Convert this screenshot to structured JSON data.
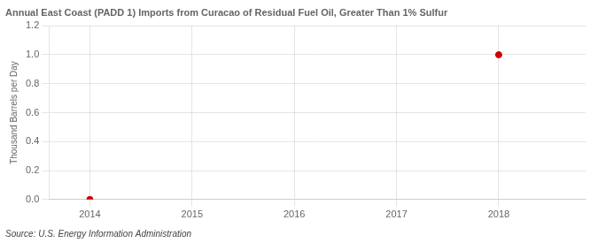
{
  "chart_data": {
    "type": "scatter",
    "title": "Annual East Coast (PADD 1) Imports from Curacao of Residual Fuel Oil, Greater Than 1% Sulfur",
    "ylabel": "Thousand Barrels per Day",
    "annotation": "Source: U.S. Energy Information Administration",
    "x": [
      2014,
      2018
    ],
    "values": [
      0.0,
      1.0
    ],
    "color": "#cc0000",
    "xlim": [
      2013.6,
      2018.85
    ],
    "xticks": [
      2014,
      2015,
      2016,
      2017,
      2018
    ],
    "ylim": [
      0.0,
      1.2
    ],
    "yticks": [
      {
        "value": 0.0,
        "label": "0.0"
      },
      0.2,
      0.4,
      0.6,
      0.8,
      {
        "value": 1.0,
        "label": "1.0"
      },
      1.2
    ],
    "grid": true
  }
}
